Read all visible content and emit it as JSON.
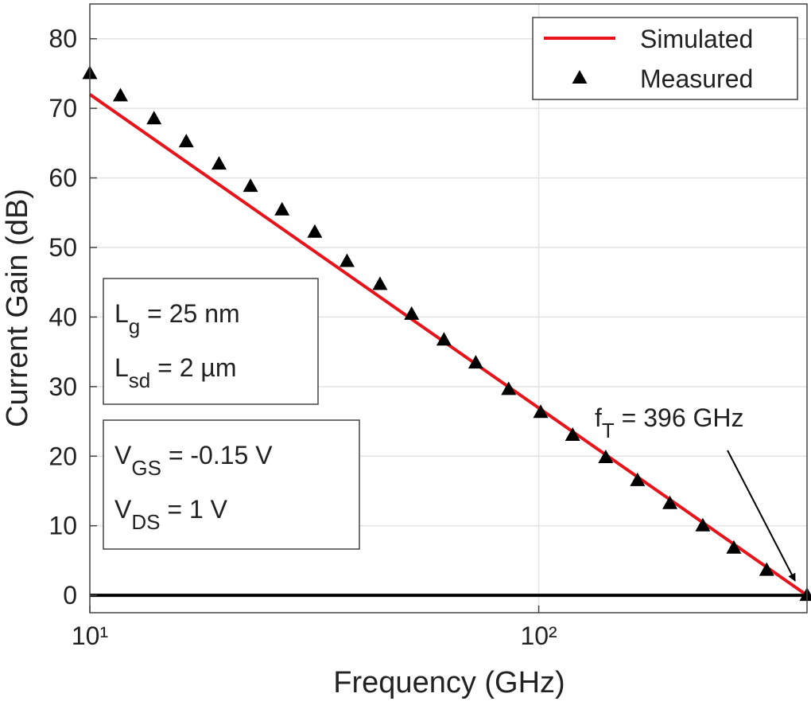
{
  "chart_data": {
    "type": "line",
    "x_label": "Frequency (GHz)",
    "y_label": "Current Gain (dB)",
    "x_log": true,
    "xlim": [
      10,
      396
    ],
    "xticks": [
      {
        "value": 10,
        "label": "10¹"
      },
      {
        "value": 100,
        "label": "10²"
      }
    ],
    "ylim": [
      -2.5,
      85
    ],
    "yticks": [
      0,
      10,
      20,
      30,
      40,
      50,
      60,
      70,
      80
    ],
    "grid": true,
    "legend_position": "upper-right",
    "series": [
      {
        "name": "Simulated",
        "color": "#e8141b",
        "style": "line",
        "x": [
          10,
          396
        ],
        "values": [
          72,
          0
        ]
      },
      {
        "name": "Measured",
        "color": "#000000",
        "style": "triangle",
        "x": [
          10,
          11.7,
          13.9,
          16.4,
          19.4,
          22.8,
          26.8,
          31.7,
          37.4,
          44.3,
          52.1,
          61.5,
          72.4,
          85.7,
          101,
          119,
          141,
          166,
          196,
          232,
          272,
          322,
          396
        ],
        "values": [
          75,
          71.8,
          68.5,
          65.2,
          62,
          58.8,
          55.4,
          52.2,
          48,
          44.7,
          40.4,
          36.7,
          33.4,
          29.6,
          26.3,
          23,
          19.8,
          16.5,
          13.2,
          10,
          6.8,
          3.6,
          0
        ]
      }
    ],
    "boxes": [
      [
        {
          "text": "L",
          "sub": "g",
          "rest": " = 25 nm"
        },
        {
          "text": "L",
          "sub": "sd",
          "rest": " = 2 µm"
        }
      ],
      [
        {
          "text": "V",
          "sub": "GS",
          "rest": " = -0.15 V"
        },
        {
          "text": "V",
          "sub": "DS",
          "rest": " = 1 V"
        }
      ]
    ],
    "arrow_annotation": {
      "text": "f",
      "sub": "T",
      "rest": " = 396 GHz"
    }
  }
}
